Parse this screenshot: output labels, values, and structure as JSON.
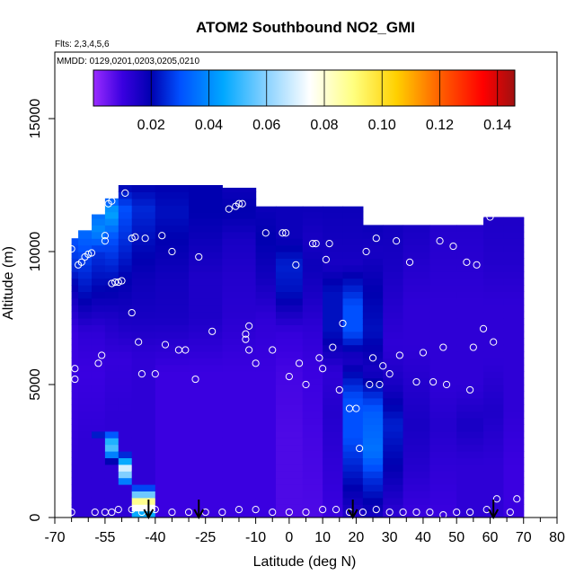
{
  "chart_data": {
    "type": "heatmap",
    "title": "ATOM2 Southbound NO2_GMI",
    "notes": [
      "Flts: 2,3,4,5,6",
      "MMDD: 0129,0201,0203,0205,0210"
    ],
    "xlabel": "Latitude (deg N)",
    "ylabel": "Altitude (m)",
    "xlim": [
      -70,
      80
    ],
    "ylim": [
      0,
      17500
    ],
    "x_ticks": [
      -70,
      -55,
      -40,
      -25,
      -10,
      0,
      10,
      20,
      30,
      40,
      50,
      60,
      70,
      80
    ],
    "x_tick_labels": [
      "-70",
      "-55",
      "-40",
      "-25",
      "-10",
      "0",
      "10",
      "20",
      "30",
      "40",
      "50",
      "60",
      "70",
      "80"
    ],
    "x_minor_ticks": [
      -65,
      -60,
      -50,
      -45,
      -35,
      -30,
      -20,
      -15,
      -5,
      5,
      15,
      25,
      35,
      45,
      55,
      65,
      75
    ],
    "y_ticks": [
      0,
      5000,
      10000,
      15000
    ],
    "y_tick_labels": [
      "0",
      "5000",
      "10000",
      "15000"
    ],
    "colorbar": {
      "range": [
        0.0,
        0.146
      ],
      "ticks": [
        0.02,
        0.04,
        0.06,
        0.08,
        0.1,
        0.12,
        0.14
      ],
      "tick_labels": [
        "0.02",
        "0.04",
        "0.06",
        "0.08",
        "0.10",
        "0.12",
        "0.14"
      ],
      "stops": [
        {
          "v": 0.0,
          "c": "#9a2cff"
        },
        {
          "v": 0.01,
          "c": "#3a00e0"
        },
        {
          "v": 0.02,
          "c": "#0000b0"
        },
        {
          "v": 0.03,
          "c": "#0050ff"
        },
        {
          "v": 0.045,
          "c": "#00a8ff"
        },
        {
          "v": 0.06,
          "c": "#8ad2ff"
        },
        {
          "v": 0.075,
          "c": "#ffffff"
        },
        {
          "v": 0.09,
          "c": "#ffff80"
        },
        {
          "v": 0.105,
          "c": "#ffd000"
        },
        {
          "v": 0.12,
          "c": "#ff6000"
        },
        {
          "v": 0.135,
          "c": "#ff0000"
        },
        {
          "v": 0.146,
          "c": "#a01010"
        }
      ]
    },
    "arrows_at_latitude": [
      -42,
      -27,
      19,
      61
    ],
    "field_columns": [
      {
        "x0": -65,
        "x1": -63,
        "ymax": 10500,
        "profile": [
          [
            0,
            0.012
          ],
          [
            2000,
            0.012
          ],
          [
            5000,
            0.01
          ],
          [
            7000,
            0.01
          ],
          [
            8500,
            0.018
          ],
          [
            9500,
            0.026
          ],
          [
            10500,
            0.03
          ]
        ]
      },
      {
        "x0": -63,
        "x1": -59,
        "ymax": 10800,
        "profile": [
          [
            0,
            0.012
          ],
          [
            3000,
            0.012
          ],
          [
            5500,
            0.01
          ],
          [
            7000,
            0.012
          ],
          [
            8500,
            0.022
          ],
          [
            9800,
            0.028
          ],
          [
            10800,
            0.035
          ]
        ]
      },
      {
        "x0": -59,
        "x1": -55,
        "ymax": 11400,
        "profile": [
          [
            0,
            0.012
          ],
          [
            3000,
            0.012
          ],
          [
            5500,
            0.01
          ],
          [
            7000,
            0.012
          ],
          [
            8500,
            0.02
          ],
          [
            10000,
            0.026
          ],
          [
            10800,
            0.04
          ],
          [
            11400,
            0.035
          ]
        ]
      },
      {
        "x0": -55,
        "x1": -51,
        "ymax": 12000,
        "profile": [
          [
            0,
            0.012
          ],
          [
            4000,
            0.012
          ],
          [
            6000,
            0.011
          ],
          [
            7500,
            0.015
          ],
          [
            9000,
            0.022
          ],
          [
            10500,
            0.03
          ],
          [
            11500,
            0.045
          ],
          [
            12000,
            0.03
          ]
        ]
      },
      {
        "x0": -51,
        "x1": -47,
        "ymax": 12500,
        "profile": [
          [
            0,
            0.012
          ],
          [
            4000,
            0.012
          ],
          [
            6000,
            0.011
          ],
          [
            7500,
            0.016
          ],
          [
            9000,
            0.02
          ],
          [
            10500,
            0.026
          ],
          [
            11600,
            0.03
          ],
          [
            12500,
            0.02
          ]
        ]
      },
      {
        "x0": -47,
        "x1": -40,
        "ymax": 12500,
        "profile": [
          [
            0,
            0.012
          ],
          [
            4000,
            0.012
          ],
          [
            6000,
            0.012
          ],
          [
            7500,
            0.016
          ],
          [
            9000,
            0.018
          ],
          [
            10500,
            0.022
          ],
          [
            11600,
            0.025
          ],
          [
            12500,
            0.02
          ]
        ]
      },
      {
        "x0": -40,
        "x1": -30,
        "ymax": 12500,
        "profile": [
          [
            0,
            0.01
          ],
          [
            3000,
            0.01
          ],
          [
            5500,
            0.01
          ],
          [
            7500,
            0.016
          ],
          [
            9000,
            0.017
          ],
          [
            10500,
            0.02
          ],
          [
            11500,
            0.022
          ],
          [
            12500,
            0.02
          ]
        ]
      },
      {
        "x0": -30,
        "x1": -20,
        "ymax": 12500,
        "profile": [
          [
            0,
            0.01
          ],
          [
            3000,
            0.01
          ],
          [
            5500,
            0.01
          ],
          [
            7500,
            0.015
          ],
          [
            9000,
            0.015
          ],
          [
            10500,
            0.018
          ],
          [
            11500,
            0.02
          ],
          [
            12500,
            0.02
          ]
        ]
      },
      {
        "x0": -20,
        "x1": -10,
        "ymax": 12400,
        "profile": [
          [
            0,
            0.01
          ],
          [
            3000,
            0.01
          ],
          [
            5500,
            0.01
          ],
          [
            7500,
            0.013
          ],
          [
            9000,
            0.014
          ],
          [
            10500,
            0.016
          ],
          [
            11500,
            0.02
          ],
          [
            12400,
            0.018
          ]
        ]
      },
      {
        "x0": -10,
        "x1": -4,
        "ymax": 11700,
        "profile": [
          [
            0,
            0.01
          ],
          [
            3000,
            0.01
          ],
          [
            5500,
            0.01
          ],
          [
            7500,
            0.012
          ],
          [
            9000,
            0.017
          ],
          [
            10500,
            0.02
          ],
          [
            11700,
            0.018
          ]
        ]
      },
      {
        "x0": -4,
        "x1": 4,
        "ymax": 11700,
        "profile": [
          [
            0,
            0.008
          ],
          [
            3000,
            0.008
          ],
          [
            5500,
            0.009
          ],
          [
            7000,
            0.011
          ],
          [
            8500,
            0.022
          ],
          [
            9500,
            0.024
          ],
          [
            10500,
            0.018
          ],
          [
            11700,
            0.018
          ]
        ]
      },
      {
        "x0": 4,
        "x1": 10,
        "ymax": 11700,
        "profile": [
          [
            0,
            0.008
          ],
          [
            3000,
            0.009
          ],
          [
            5500,
            0.01
          ],
          [
            7000,
            0.012
          ],
          [
            8500,
            0.016
          ],
          [
            9500,
            0.018
          ],
          [
            10500,
            0.016
          ],
          [
            11700,
            0.018
          ]
        ]
      },
      {
        "x0": 10,
        "x1": 16,
        "ymax": 11700,
        "profile": [
          [
            0,
            0.01
          ],
          [
            2000,
            0.012
          ],
          [
            4000,
            0.014
          ],
          [
            5500,
            0.012
          ],
          [
            7000,
            0.022
          ],
          [
            8500,
            0.022
          ],
          [
            9500,
            0.016
          ],
          [
            11700,
            0.018
          ]
        ]
      },
      {
        "x0": 16,
        "x1": 22,
        "ymax": 11700,
        "profile": [
          [
            0,
            0.014
          ],
          [
            1500,
            0.022
          ],
          [
            3000,
            0.03
          ],
          [
            4500,
            0.03
          ],
          [
            6000,
            0.015
          ],
          [
            7000,
            0.03
          ],
          [
            8000,
            0.03
          ],
          [
            9500,
            0.016
          ],
          [
            11700,
            0.018
          ]
        ]
      },
      {
        "x0": 22,
        "x1": 28,
        "ymax": 11000,
        "profile": [
          [
            0,
            0.016
          ],
          [
            1500,
            0.026
          ],
          [
            2500,
            0.036
          ],
          [
            4000,
            0.032
          ],
          [
            5500,
            0.016
          ],
          [
            7000,
            0.022
          ],
          [
            8500,
            0.02
          ],
          [
            10000,
            0.016
          ],
          [
            11000,
            0.018
          ]
        ]
      },
      {
        "x0": 28,
        "x1": 34,
        "ymax": 11000,
        "profile": [
          [
            0,
            0.012
          ],
          [
            2000,
            0.02
          ],
          [
            3500,
            0.024
          ],
          [
            5000,
            0.016
          ],
          [
            6500,
            0.012
          ],
          [
            8000,
            0.014
          ],
          [
            9500,
            0.016
          ],
          [
            11000,
            0.017
          ]
        ]
      },
      {
        "x0": 34,
        "x1": 42,
        "ymax": 11000,
        "profile": [
          [
            0,
            0.01
          ],
          [
            2000,
            0.014
          ],
          [
            3500,
            0.016
          ],
          [
            5000,
            0.014
          ],
          [
            6500,
            0.012
          ],
          [
            8000,
            0.012
          ],
          [
            9500,
            0.014
          ],
          [
            11000,
            0.016
          ]
        ]
      },
      {
        "x0": 42,
        "x1": 50,
        "ymax": 11000,
        "profile": [
          [
            0,
            0.01
          ],
          [
            2000,
            0.012
          ],
          [
            3500,
            0.014
          ],
          [
            5000,
            0.012
          ],
          [
            6500,
            0.012
          ],
          [
            8000,
            0.012
          ],
          [
            9500,
            0.013
          ],
          [
            11000,
            0.014
          ]
        ]
      },
      {
        "x0": 50,
        "x1": 58,
        "ymax": 11000,
        "profile": [
          [
            0,
            0.012
          ],
          [
            2000,
            0.012
          ],
          [
            3500,
            0.016
          ],
          [
            5000,
            0.012
          ],
          [
            6500,
            0.012
          ],
          [
            8000,
            0.012
          ],
          [
            9500,
            0.013
          ],
          [
            11000,
            0.014
          ]
        ]
      },
      {
        "x0": 58,
        "x1": 64,
        "ymax": 11300,
        "profile": [
          [
            0,
            0.012
          ],
          [
            2000,
            0.012
          ],
          [
            4000,
            0.015
          ],
          [
            6000,
            0.012
          ],
          [
            8000,
            0.012
          ],
          [
            9500,
            0.014
          ],
          [
            11300,
            0.015
          ]
        ]
      },
      {
        "x0": 64,
        "x1": 70,
        "ymax": 11300,
        "profile": [
          [
            0,
            0.01
          ],
          [
            2000,
            0.01
          ],
          [
            4000,
            0.012
          ],
          [
            6000,
            0.012
          ],
          [
            8000,
            0.012
          ],
          [
            9500,
            0.014
          ],
          [
            11300,
            0.015
          ]
        ]
      }
    ],
    "low_level_plume": {
      "x_start": -55,
      "x_end": -41,
      "y_start": 3200,
      "y_end": 0,
      "peak": 0.09
    },
    "observations": [
      [
        -65,
        10100
      ],
      [
        -64,
        5600
      ],
      [
        -64,
        5200
      ],
      [
        -63,
        9500
      ],
      [
        -62,
        9600
      ],
      [
        -61,
        9800
      ],
      [
        -60,
        9900
      ],
      [
        -59,
        9950
      ],
      [
        -57,
        5800
      ],
      [
        -56,
        6100
      ],
      [
        -55,
        10600
      ],
      [
        -55,
        10400
      ],
      [
        -54,
        11800
      ],
      [
        -53,
        11900
      ],
      [
        -53,
        8800
      ],
      [
        -52,
        8850
      ],
      [
        -51,
        8850
      ],
      [
        -50,
        8900
      ],
      [
        -49,
        12200
      ],
      [
        -47,
        7700
      ],
      [
        -47,
        10500
      ],
      [
        -46,
        10550
      ],
      [
        -45,
        6600
      ],
      [
        -44,
        5400
      ],
      [
        -43,
        10500
      ],
      [
        -40,
        5400
      ],
      [
        -38,
        10600
      ],
      [
        -37,
        6500
      ],
      [
        -35,
        10000
      ],
      [
        -33,
        6300
      ],
      [
        -31,
        6300
      ],
      [
        -28,
        5200
      ],
      [
        -27,
        9800
      ],
      [
        -23,
        7000
      ],
      [
        -18,
        11600
      ],
      [
        -16,
        11700
      ],
      [
        -15,
        11800
      ],
      [
        -14,
        11800
      ],
      [
        -13,
        6900
      ],
      [
        -13,
        6700
      ],
      [
        -12,
        6300
      ],
      [
        -12,
        7200
      ],
      [
        -10,
        5800
      ],
      [
        -7,
        10700
      ],
      [
        -5,
        6300
      ],
      [
        -2,
        10700
      ],
      [
        -1,
        10700
      ],
      [
        0,
        5300
      ],
      [
        2,
        9500
      ],
      [
        3,
        5800
      ],
      [
        5,
        5000
      ],
      [
        7,
        10300
      ],
      [
        8,
        10300
      ],
      [
        9,
        6000
      ],
      [
        10,
        5600
      ],
      [
        11,
        9700
      ],
      [
        12,
        10300
      ],
      [
        13,
        6400
      ],
      [
        15,
        4800
      ],
      [
        16,
        7300
      ],
      [
        18,
        4100
      ],
      [
        20,
        4100
      ],
      [
        21,
        2600
      ],
      [
        23,
        10000
      ],
      [
        24,
        5000
      ],
      [
        25,
        6000
      ],
      [
        26,
        10500
      ],
      [
        27,
        5000
      ],
      [
        28,
        5700
      ],
      [
        30,
        5400
      ],
      [
        32,
        10400
      ],
      [
        33,
        6100
      ],
      [
        36,
        9600
      ],
      [
        38,
        5100
      ],
      [
        40,
        6200
      ],
      [
        43,
        5100
      ],
      [
        45,
        10400
      ],
      [
        46,
        6400
      ],
      [
        47,
        5000
      ],
      [
        49,
        10200
      ],
      [
        53,
        9600
      ],
      [
        54,
        4800
      ],
      [
        55,
        6400
      ],
      [
        56,
        9500
      ],
      [
        57,
        11300
      ],
      [
        58,
        7100
      ],
      [
        60,
        11300
      ],
      [
        61,
        6600
      ],
      [
        62,
        700
      ],
      [
        68,
        700
      ],
      [
        -65,
        200
      ],
      [
        -58,
        200
      ],
      [
        -55,
        200
      ],
      [
        -53,
        200
      ],
      [
        -51,
        300
      ],
      [
        -47,
        300
      ],
      [
        -44,
        200
      ],
      [
        -40,
        300
      ],
      [
        -35,
        200
      ],
      [
        -30,
        200
      ],
      [
        -25,
        200
      ],
      [
        -20,
        200
      ],
      [
        -15,
        300
      ],
      [
        -10,
        300
      ],
      [
        -5,
        200
      ],
      [
        0,
        200
      ],
      [
        5,
        200
      ],
      [
        10,
        300
      ],
      [
        14,
        300
      ],
      [
        18,
        200
      ],
      [
        22,
        200
      ],
      [
        26,
        300
      ],
      [
        30,
        200
      ],
      [
        34,
        200
      ],
      [
        38,
        200
      ],
      [
        42,
        200
      ],
      [
        46,
        100
      ],
      [
        50,
        200
      ],
      [
        54,
        200
      ],
      [
        59,
        300
      ],
      [
        66,
        200
      ]
    ]
  }
}
